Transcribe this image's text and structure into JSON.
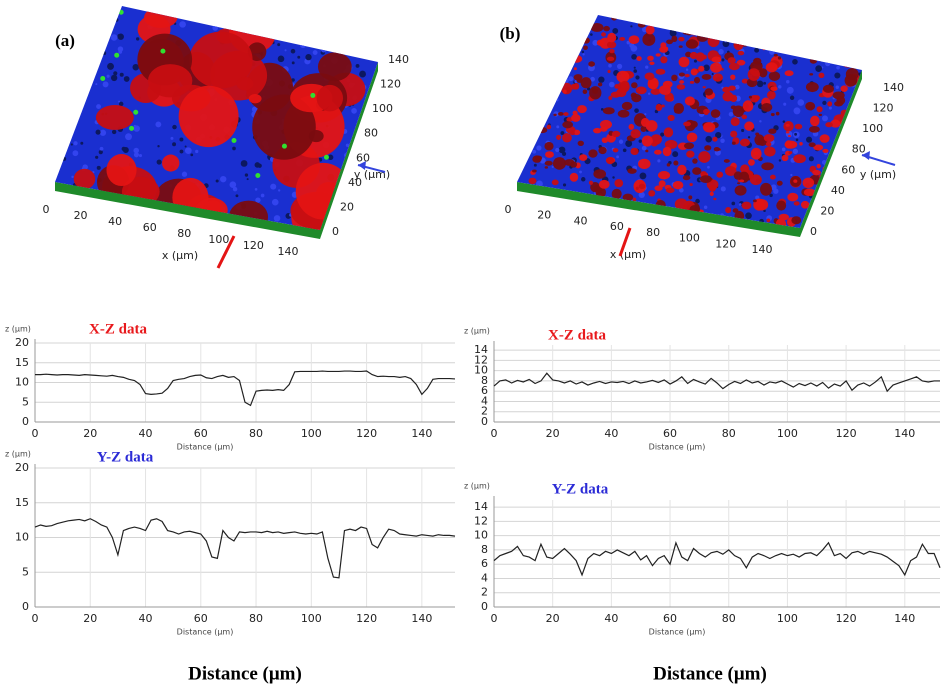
{
  "surfaces": [
    {
      "label": "(a)",
      "x_ticks": [
        0,
        20,
        40,
        60,
        80,
        100,
        120,
        140
      ],
      "y_ticks": [
        0,
        20,
        40,
        60,
        80,
        100,
        120,
        140
      ],
      "x_label": "x (µm)",
      "y_label": "y (µm)"
    },
    {
      "label": "(b)",
      "x_ticks": [
        0,
        20,
        40,
        60,
        80,
        100,
        120,
        140
      ],
      "y_ticks": [
        0,
        20,
        40,
        60,
        80,
        100,
        120,
        140
      ],
      "x_label": "x (µm)",
      "y_label": "y (µm)"
    }
  ],
  "bottom_labels": [
    "Distance (μm)",
    "Distance (μm)"
  ],
  "chart_data": [
    {
      "type": "line",
      "title": "X-Z data",
      "title_color": "#e8191c",
      "y_label": "z (µm)",
      "x_label": "Distance (µm)",
      "color": "#222222",
      "grid": true,
      "xlim": [
        0,
        152
      ],
      "ylim": [
        0,
        20
      ],
      "xticks": [
        0,
        20,
        40,
        60,
        80,
        100,
        120,
        140
      ],
      "yticks": [
        0,
        5,
        10,
        15,
        20
      ],
      "x": [
        0,
        2,
        4,
        6,
        8,
        10,
        12,
        14,
        16,
        18,
        20,
        22,
        24,
        26,
        28,
        30,
        32,
        34,
        36,
        38,
        40,
        42,
        44,
        46,
        48,
        50,
        52,
        54,
        56,
        58,
        60,
        62,
        64,
        66,
        68,
        70,
        72,
        74,
        76,
        78,
        80,
        82,
        84,
        86,
        88,
        90,
        92,
        94,
        96,
        98,
        100,
        102,
        104,
        106,
        108,
        110,
        112,
        114,
        116,
        118,
        120,
        122,
        124,
        126,
        128,
        130,
        132,
        134,
        136,
        138,
        140,
        142,
        144,
        146,
        148,
        150,
        152
      ],
      "values": [
        12,
        12,
        12.1,
        12,
        11.9,
        12,
        12,
        11.9,
        11.8,
        12,
        11.9,
        11.8,
        11.7,
        11.6,
        11.8,
        11.5,
        11.3,
        10.8,
        10.5,
        9.5,
        7.2,
        7,
        7.1,
        7.3,
        8.5,
        10.5,
        10.8,
        11,
        11.5,
        11.8,
        11.9,
        11.2,
        11,
        11.5,
        11.8,
        11.3,
        11.5,
        10.5,
        5,
        4.2,
        7.8,
        8,
        8.1,
        8,
        8.2,
        8,
        9.5,
        12.7,
        12.8,
        12.8,
        12.8,
        12.8,
        12.9,
        12.8,
        12.8,
        12.8,
        12.9,
        12.9,
        12.8,
        12.8,
        12.9,
        12,
        11.5,
        11.6,
        11.5,
        11.5,
        11.3,
        11.5,
        11,
        9.5,
        7,
        8.5,
        10.8,
        11,
        11,
        11,
        10.9
      ]
    },
    {
      "type": "line",
      "title": "Y-Z data",
      "title_color": "#2b2bd6",
      "y_label": "z (µm)",
      "x_label": "Distance (µm)",
      "color": "#222222",
      "grid": true,
      "xlim": [
        0,
        152
      ],
      "ylim": [
        0,
        20
      ],
      "xticks": [
        0,
        20,
        40,
        60,
        80,
        100,
        120,
        140
      ],
      "yticks": [
        0,
        5,
        10,
        15,
        20
      ],
      "x": [
        0,
        2,
        4,
        6,
        8,
        10,
        12,
        14,
        16,
        18,
        20,
        22,
        24,
        26,
        28,
        30,
        32,
        34,
        36,
        38,
        40,
        42,
        44,
        46,
        48,
        50,
        52,
        54,
        56,
        58,
        60,
        62,
        64,
        66,
        68,
        70,
        72,
        74,
        76,
        78,
        80,
        82,
        84,
        86,
        88,
        90,
        92,
        94,
        96,
        98,
        100,
        102,
        104,
        106,
        108,
        110,
        112,
        114,
        116,
        118,
        120,
        122,
        124,
        126,
        128,
        130,
        132,
        134,
        136,
        138,
        140,
        142,
        144,
        146,
        148,
        150,
        152
      ],
      "values": [
        11.5,
        11.8,
        11.6,
        11.7,
        12,
        12.2,
        12.4,
        12.5,
        12.6,
        12.4,
        12.7,
        12.3,
        11.8,
        11.5,
        10,
        7.5,
        11,
        11.3,
        11.5,
        11.3,
        11,
        12.5,
        12.7,
        12.3,
        11,
        10.8,
        10.5,
        10.8,
        10.9,
        10.7,
        10.5,
        9.5,
        7.2,
        7,
        11,
        10,
        9.5,
        10.8,
        10.7,
        10.8,
        10.8,
        10.7,
        10.9,
        10.7,
        10.8,
        10.6,
        10.7,
        10.8,
        10.6,
        10.5,
        10.6,
        10.5,
        10.8,
        7,
        4.3,
        4.2,
        11,
        11.2,
        11,
        11.5,
        11.3,
        9,
        8.5,
        10,
        11.2,
        11,
        10.5,
        10.4,
        10.3,
        10.2,
        10.4,
        10.3,
        10.2,
        10.4,
        10.3,
        10.3,
        10.2
      ]
    },
    {
      "type": "line",
      "title": "X-Z data",
      "title_color": "#e8191c",
      "y_label": "z (µm)",
      "x_label": "Distance (µm)",
      "color": "#222222",
      "grid": true,
      "xlim": [
        0,
        152
      ],
      "ylim": [
        0,
        15
      ],
      "xticks": [
        0,
        20,
        40,
        60,
        80,
        100,
        120,
        140
      ],
      "yticks": [
        0,
        2,
        4,
        6,
        8,
        10,
        12,
        14
      ],
      "x": [
        0,
        2,
        4,
        6,
        8,
        10,
        12,
        14,
        16,
        18,
        20,
        22,
        24,
        26,
        28,
        30,
        32,
        34,
        36,
        38,
        40,
        42,
        44,
        46,
        48,
        50,
        52,
        54,
        56,
        58,
        60,
        62,
        64,
        66,
        68,
        70,
        72,
        74,
        76,
        78,
        80,
        82,
        84,
        86,
        88,
        90,
        92,
        94,
        96,
        98,
        100,
        102,
        104,
        106,
        108,
        110,
        112,
        114,
        116,
        118,
        120,
        122,
        124,
        126,
        128,
        130,
        132,
        134,
        136,
        138,
        140,
        142,
        144,
        146,
        148,
        150,
        152
      ],
      "values": [
        7,
        8,
        8.2,
        7.6,
        8.1,
        7.8,
        8.3,
        7.5,
        8,
        9.5,
        8.2,
        8,
        7.6,
        8,
        7.4,
        7.8,
        7.2,
        7.6,
        7.9,
        7.5,
        7.8,
        7.7,
        7.9,
        7.5,
        8,
        7.6,
        7.8,
        8.1,
        7.7,
        8.2,
        7.4,
        8,
        8.8,
        7.5,
        8.3,
        7.8,
        7.4,
        8.5,
        7.6,
        6.5,
        7.3,
        7.9,
        7.5,
        8.2,
        7.6,
        7.9,
        7.2,
        7.8,
        7.6,
        8,
        7.4,
        6.8,
        7.5,
        7.1,
        7.6,
        7,
        7.7,
        6.6,
        7.4,
        7,
        8,
        6.2,
        7.2,
        7.6,
        7,
        7.8,
        8.8,
        6,
        7.2,
        7.6,
        8,
        8.4,
        8.8,
        8,
        7.8,
        8,
        8
      ]
    },
    {
      "type": "line",
      "title": "Y-Z data",
      "title_color": "#2b2bd6",
      "y_label": "z (µm)",
      "x_label": "Distance (µm)",
      "color": "#222222",
      "grid": true,
      "xlim": [
        0,
        152
      ],
      "ylim": [
        0,
        15
      ],
      "xticks": [
        0,
        20,
        40,
        60,
        80,
        100,
        120,
        140
      ],
      "yticks": [
        0,
        2,
        4,
        6,
        8,
        10,
        12,
        14
      ],
      "x": [
        0,
        2,
        4,
        6,
        8,
        10,
        12,
        14,
        16,
        18,
        20,
        22,
        24,
        26,
        28,
        30,
        32,
        34,
        36,
        38,
        40,
        42,
        44,
        46,
        48,
        50,
        52,
        54,
        56,
        58,
        60,
        62,
        64,
        66,
        68,
        70,
        72,
        74,
        76,
        78,
        80,
        82,
        84,
        86,
        88,
        90,
        92,
        94,
        96,
        98,
        100,
        102,
        104,
        106,
        108,
        110,
        112,
        114,
        116,
        118,
        120,
        122,
        124,
        126,
        128,
        130,
        132,
        134,
        136,
        138,
        140,
        142,
        144,
        146,
        148,
        150,
        152
      ],
      "values": [
        6.5,
        7.2,
        7.5,
        7.8,
        8.5,
        7.2,
        7,
        6.5,
        8.8,
        7,
        6.8,
        7.5,
        8.2,
        7.4,
        6.5,
        4.5,
        6.8,
        7.5,
        7.2,
        7.8,
        7.5,
        8,
        7.6,
        7.2,
        7.8,
        6.6,
        7.2,
        5.8,
        6.8,
        7.2,
        6,
        9,
        7,
        6.5,
        8.2,
        7.5,
        7,
        7.6,
        7.8,
        7.4,
        8,
        7.2,
        6.8,
        5.5,
        7,
        7.5,
        7.2,
        6.8,
        7.2,
        7.5,
        7.2,
        7.4,
        7,
        7.5,
        7.6,
        7.2,
        8,
        9,
        7.2,
        7.5,
        6.8,
        7.6,
        7.8,
        7.4,
        7.8,
        7.6,
        7.4,
        7,
        6.4,
        5.8,
        4.5,
        6.5,
        7,
        8.8,
        7.5,
        7.5,
        5.5
      ]
    }
  ]
}
